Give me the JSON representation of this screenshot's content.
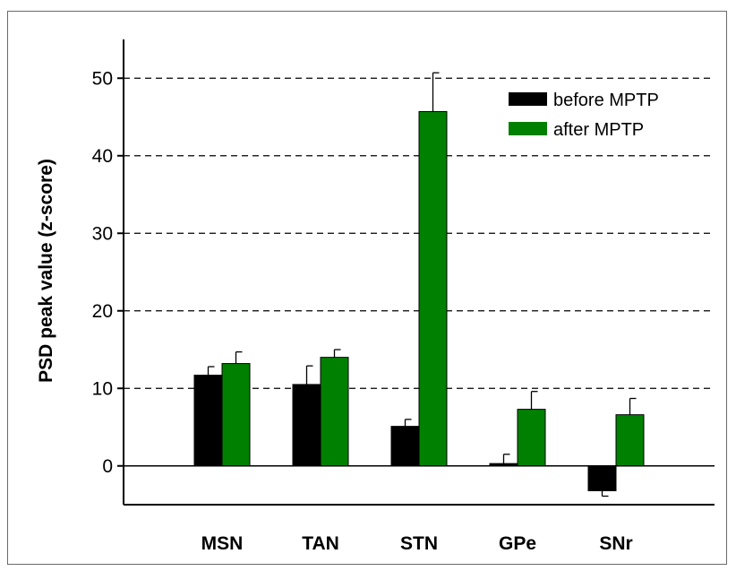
{
  "chart_data": {
    "type": "bar",
    "ylabel": "PSD peak value  (z-score)",
    "xlabel": "",
    "categories": [
      "MSN",
      "TAN",
      "STN",
      "GPe",
      "SNr"
    ],
    "ylim": [
      -5,
      55
    ],
    "yticks": [
      0,
      10,
      20,
      30,
      40,
      50
    ],
    "ytick_labels": [
      "0",
      "10",
      "20",
      "30",
      "40",
      "50"
    ],
    "grid": "dashed horizontal lines at 10, 20, 30, 40, 50",
    "legend_position": "top-right",
    "series": [
      {
        "name": "before MPTP",
        "color": "#000000",
        "values": [
          11.7,
          10.5,
          5.1,
          0.3,
          -3.2
        ],
        "error": [
          1.1,
          2.4,
          0.9,
          1.2,
          0.7
        ]
      },
      {
        "name": "after MPTP",
        "color": "#008000",
        "values": [
          13.2,
          14.0,
          45.7,
          7.3,
          6.6
        ],
        "error": [
          1.5,
          1.0,
          5.0,
          2.3,
          2.1
        ]
      }
    ]
  }
}
